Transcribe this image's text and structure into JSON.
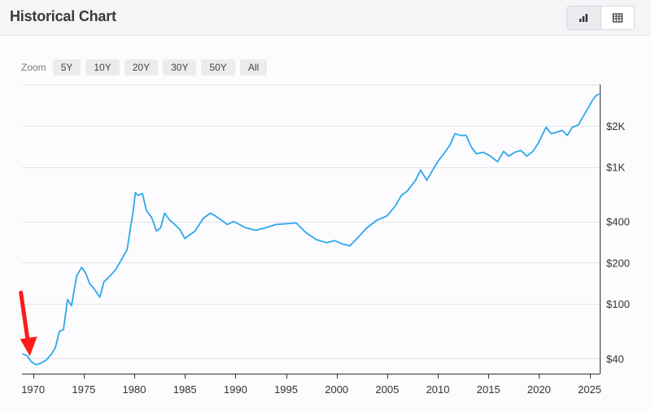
{
  "header": {
    "title": "Historical Chart",
    "view_buttons": [
      {
        "name": "chart-view-button",
        "icon": "bar-chart-icon",
        "active": true
      },
      {
        "name": "table-view-button",
        "icon": "table-icon",
        "active": false
      }
    ]
  },
  "zoom": {
    "label": "Zoom",
    "options": [
      "5Y",
      "10Y",
      "20Y",
      "30Y",
      "50Y",
      "All"
    ]
  },
  "colors": {
    "line": "#2ea8ea",
    "arrow": "#ff1a1a",
    "grid": "#e3e3e8",
    "axis": "#333333"
  },
  "chart_data": {
    "type": "line",
    "y_scale": "log",
    "xlim": [
      1968.9,
      2026.0
    ],
    "ylim": [
      31,
      4000
    ],
    "x_ticks": [
      1970,
      1975,
      1980,
      1985,
      1990,
      1995,
      2000,
      2005,
      2010,
      2015,
      2020,
      2025
    ],
    "x_tick_labels": [
      "1970",
      "1975",
      "1980",
      "1985",
      "1990",
      "1995",
      "2000",
      "2005",
      "2010",
      "2015",
      "2020",
      "2025"
    ],
    "y_ticks": [
      40,
      100,
      200,
      400,
      1000,
      2000
    ],
    "y_tick_labels": [
      "$40",
      "$100",
      "$200",
      "$400",
      "$1K",
      "$2K"
    ],
    "y_grid_values": [
      40,
      100,
      200,
      400,
      1000,
      2000,
      4000
    ],
    "grid": true,
    "y_axis_side": "right",
    "legend": false,
    "annotation": "red arrow pointing to the 1969–1970 low",
    "series": [
      {
        "values": [
          [
            1969.0,
            43
          ],
          [
            1969.4,
            42
          ],
          [
            1969.8,
            38
          ],
          [
            1970.3,
            36
          ],
          [
            1970.8,
            37
          ],
          [
            1971.3,
            39
          ],
          [
            1971.8,
            43
          ],
          [
            1972.2,
            48
          ],
          [
            1972.6,
            63
          ],
          [
            1973.0,
            65
          ],
          [
            1973.4,
            108
          ],
          [
            1973.8,
            97
          ],
          [
            1974.3,
            160
          ],
          [
            1974.8,
            185
          ],
          [
            1975.2,
            168
          ],
          [
            1975.6,
            140
          ],
          [
            1976.0,
            130
          ],
          [
            1976.6,
            112
          ],
          [
            1977.0,
            145
          ],
          [
            1977.6,
            160
          ],
          [
            1978.2,
            180
          ],
          [
            1978.8,
            215
          ],
          [
            1979.3,
            250
          ],
          [
            1979.6,
            350
          ],
          [
            1979.9,
            480
          ],
          [
            1980.1,
            650
          ],
          [
            1980.4,
            620
          ],
          [
            1980.8,
            640
          ],
          [
            1981.2,
            480
          ],
          [
            1981.7,
            430
          ],
          [
            1982.2,
            340
          ],
          [
            1982.6,
            360
          ],
          [
            1983.0,
            460
          ],
          [
            1983.5,
            410
          ],
          [
            1984.0,
            380
          ],
          [
            1984.5,
            350
          ],
          [
            1985.0,
            300
          ],
          [
            1985.5,
            320
          ],
          [
            1986.0,
            340
          ],
          [
            1986.8,
            420
          ],
          [
            1987.5,
            460
          ],
          [
            1988.0,
            440
          ],
          [
            1988.6,
            410
          ],
          [
            1989.2,
            380
          ],
          [
            1989.8,
            400
          ],
          [
            1990.4,
            380
          ],
          [
            1991.0,
            360
          ],
          [
            1992.0,
            345
          ],
          [
            1993.0,
            360
          ],
          [
            1994.0,
            380
          ],
          [
            1995.0,
            385
          ],
          [
            1996.0,
            390
          ],
          [
            1997.0,
            330
          ],
          [
            1998.0,
            295
          ],
          [
            1999.0,
            280
          ],
          [
            1999.8,
            290
          ],
          [
            2000.5,
            275
          ],
          [
            2001.3,
            265
          ],
          [
            2002.0,
            300
          ],
          [
            2003.0,
            360
          ],
          [
            2004.0,
            410
          ],
          [
            2005.0,
            440
          ],
          [
            2005.8,
            520
          ],
          [
            2006.4,
            620
          ],
          [
            2007.0,
            670
          ],
          [
            2007.8,
            800
          ],
          [
            2008.3,
            950
          ],
          [
            2008.9,
            800
          ],
          [
            2009.5,
            950
          ],
          [
            2010.0,
            1100
          ],
          [
            2010.6,
            1250
          ],
          [
            2011.2,
            1450
          ],
          [
            2011.7,
            1750
          ],
          [
            2012.2,
            1700
          ],
          [
            2012.8,
            1700
          ],
          [
            2013.3,
            1400
          ],
          [
            2013.8,
            1250
          ],
          [
            2014.5,
            1280
          ],
          [
            2015.2,
            1200
          ],
          [
            2015.9,
            1090
          ],
          [
            2016.5,
            1300
          ],
          [
            2017.0,
            1200
          ],
          [
            2017.6,
            1280
          ],
          [
            2018.2,
            1320
          ],
          [
            2018.8,
            1200
          ],
          [
            2019.4,
            1300
          ],
          [
            2019.9,
            1480
          ],
          [
            2020.3,
            1700
          ],
          [
            2020.7,
            1950
          ],
          [
            2021.2,
            1750
          ],
          [
            2021.8,
            1800
          ],
          [
            2022.3,
            1850
          ],
          [
            2022.8,
            1700
          ],
          [
            2023.3,
            1950
          ],
          [
            2023.9,
            2030
          ],
          [
            2024.3,
            2300
          ],
          [
            2024.8,
            2650
          ],
          [
            2025.2,
            3000
          ],
          [
            2025.6,
            3300
          ],
          [
            2025.9,
            3400
          ]
        ]
      }
    ]
  }
}
